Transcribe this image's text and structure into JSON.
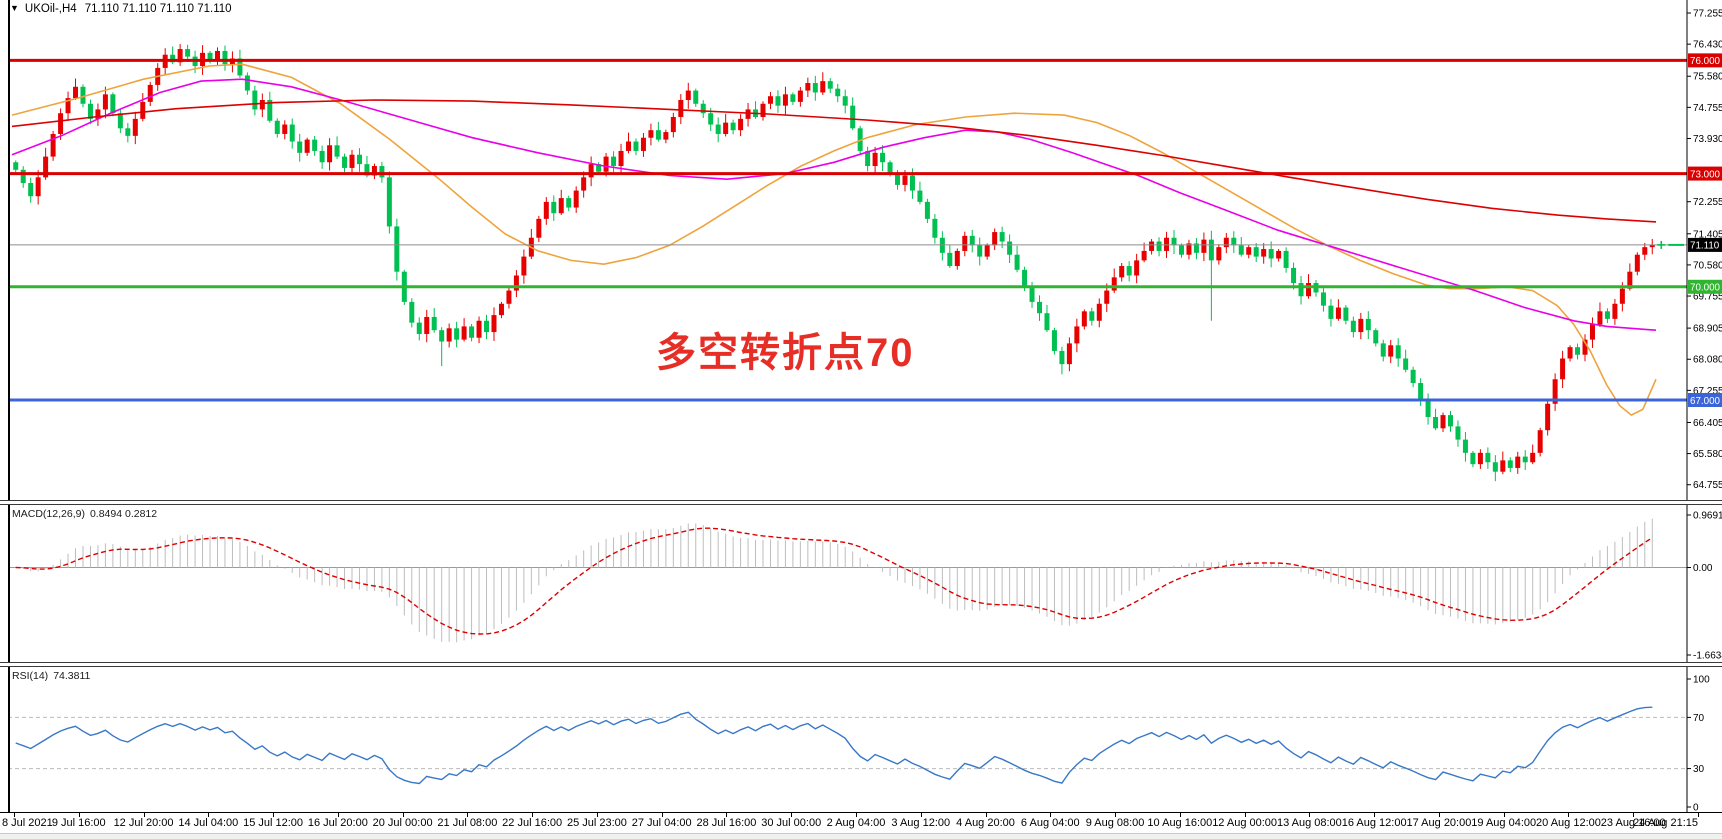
{
  "window": {
    "title_symbol": "UKOil-,H4",
    "title_values": "71.110 71.110 71.110 71.110"
  },
  "chart_data": {
    "type": "candlestick",
    "symbol": "UKOil-",
    "timeframe": "H4",
    "title": "UKOil-,H4 71.110 71.110 71.110 71.110",
    "x_labels": [
      "8 Jul 2021",
      "9 Jul 16:00",
      "12 Jul 20:00",
      "14 Jul 04:00",
      "15 Jul 12:00",
      "16 Jul 20:00",
      "20 Jul 00:00",
      "21 Jul 08:00",
      "22 Jul 16:00",
      "25 Jul 23:00",
      "27 Jul 04:00",
      "28 Jul 16:00",
      "30 Jul 00:00",
      "2 Aug 04:00",
      "3 Aug 12:00",
      "4 Aug 20:00",
      "6 Aug 04:00",
      "9 Aug 08:00",
      "10 Aug 16:00",
      "12 Aug 00:00",
      "13 Aug 08:00",
      "16 Aug 12:00",
      "17 Aug 20:00",
      "19 Aug 04:00",
      "20 Aug 12:00",
      "23 Aug 16:00",
      "24 Aug 21:15"
    ],
    "y_axis": {
      "max": 77.6,
      "min": 64.35,
      "ticks": [
        77.255,
        76.43,
        75.58,
        74.755,
        73.93,
        72.255,
        71.405,
        70.58,
        69.755,
        68.905,
        68.08,
        67.255,
        66.405,
        65.58,
        64.755
      ]
    },
    "first_open": 73.3,
    "closes": [
      73.1,
      72.75,
      72.4,
      72.9,
      73.45,
      74.05,
      74.6,
      75.0,
      75.3,
      74.85,
      74.45,
      74.7,
      75.1,
      74.6,
      74.2,
      74.0,
      74.45,
      74.9,
      75.35,
      75.8,
      76.15,
      75.95,
      76.3,
      76.1,
      75.85,
      76.2,
      76.0,
      76.25,
      75.9,
      76.05,
      75.6,
      75.2,
      74.7,
      74.95,
      74.4,
      74.05,
      74.3,
      73.85,
      73.55,
      73.9,
      73.6,
      73.3,
      73.75,
      73.45,
      73.15,
      73.5,
      73.25,
      72.95,
      73.2,
      72.9,
      71.6,
      70.4,
      69.6,
      69.05,
      68.75,
      69.2,
      68.85,
      68.55,
      68.9,
      68.6,
      68.95,
      68.65,
      69.1,
      68.8,
      69.25,
      69.55,
      69.9,
      70.3,
      70.8,
      71.3,
      71.8,
      72.25,
      71.95,
      72.35,
      72.1,
      72.55,
      72.9,
      73.25,
      73.05,
      73.45,
      73.2,
      73.6,
      73.85,
      73.6,
      73.95,
      74.15,
      73.9,
      74.1,
      74.5,
      74.95,
      75.2,
      74.85,
      74.6,
      74.3,
      74.05,
      74.35,
      74.15,
      74.45,
      74.7,
      74.5,
      74.85,
      75.05,
      74.8,
      75.1,
      74.9,
      75.2,
      75.4,
      75.15,
      75.45,
      75.25,
      75.05,
      74.8,
      74.2,
      73.6,
      73.2,
      73.55,
      73.3,
      73.0,
      72.7,
      72.95,
      72.55,
      72.25,
      71.8,
      71.3,
      70.9,
      70.55,
      70.95,
      71.35,
      71.1,
      70.8,
      71.1,
      71.45,
      71.2,
      70.85,
      70.45,
      70.0,
      69.6,
      69.3,
      68.85,
      68.3,
      67.95,
      68.5,
      68.95,
      69.35,
      69.1,
      69.55,
      69.9,
      70.25,
      70.55,
      70.3,
      70.7,
      70.95,
      71.2,
      70.95,
      71.3,
      71.1,
      70.85,
      71.15,
      70.9,
      71.25,
      70.7,
      71.05,
      71.3,
      71.1,
      70.85,
      71.05,
      70.8,
      71.0,
      70.75,
      70.95,
      70.5,
      70.1,
      69.75,
      70.1,
      69.85,
      69.5,
      69.15,
      69.45,
      69.1,
      68.8,
      69.15,
      68.85,
      68.5,
      68.15,
      68.45,
      68.1,
      67.8,
      67.45,
      67.0,
      66.55,
      66.25,
      66.6,
      66.3,
      65.95,
      65.6,
      65.3,
      65.6,
      65.35,
      65.1,
      65.4,
      65.2,
      65.5,
      65.35,
      65.6,
      66.2,
      66.9,
      67.55,
      68.1,
      68.4,
      68.2,
      68.6,
      69.0,
      69.35,
      69.15,
      69.55,
      69.95,
      70.4,
      70.85,
      71.05,
      71.11
    ],
    "wick_overrides": [
      {
        "i": 22,
        "high": 76.43
      },
      {
        "i": 57,
        "low": 67.9
      },
      {
        "i": 140,
        "low": 67.68
      },
      {
        "i": 160,
        "low": 69.1
      },
      {
        "i": 198,
        "low": 64.85
      }
    ],
    "colors": {
      "bull_candle": "#E60000",
      "bear_candle": "#00C052",
      "axis_line": "#000000",
      "tick_text": "#000000"
    },
    "moving_averages": [
      {
        "name": "fast-ma",
        "color": "#EFA33C",
        "points": [
          [
            0,
            74.55
          ],
          [
            0.04,
            75.0
          ],
          [
            0.08,
            75.5
          ],
          [
            0.12,
            75.85
          ],
          [
            0.14,
            75.9
          ],
          [
            0.17,
            75.55
          ],
          [
            0.2,
            74.85
          ],
          [
            0.23,
            73.9
          ],
          [
            0.26,
            72.85
          ],
          [
            0.28,
            72.1
          ],
          [
            0.3,
            71.4
          ],
          [
            0.32,
            70.95
          ],
          [
            0.34,
            70.7
          ],
          [
            0.36,
            70.6
          ],
          [
            0.38,
            70.78
          ],
          [
            0.4,
            71.1
          ],
          [
            0.42,
            71.6
          ],
          [
            0.44,
            72.15
          ],
          [
            0.46,
            72.7
          ],
          [
            0.48,
            73.2
          ],
          [
            0.5,
            73.6
          ],
          [
            0.52,
            73.95
          ],
          [
            0.55,
            74.3
          ],
          [
            0.58,
            74.5
          ],
          [
            0.61,
            74.6
          ],
          [
            0.64,
            74.55
          ],
          [
            0.66,
            74.35
          ],
          [
            0.68,
            74.0
          ],
          [
            0.7,
            73.55
          ],
          [
            0.72,
            73.05
          ],
          [
            0.74,
            72.55
          ],
          [
            0.76,
            72.05
          ],
          [
            0.78,
            71.55
          ],
          [
            0.8,
            71.1
          ],
          [
            0.82,
            70.7
          ],
          [
            0.84,
            70.35
          ],
          [
            0.86,
            70.05
          ],
          [
            0.875,
            69.95
          ],
          [
            0.89,
            69.95
          ],
          [
            0.91,
            70.0
          ],
          [
            0.925,
            69.9
          ],
          [
            0.94,
            69.5
          ],
          [
            0.95,
            69.0
          ],
          [
            0.96,
            68.3
          ],
          [
            0.97,
            67.4
          ],
          [
            0.978,
            66.85
          ],
          [
            0.985,
            66.6
          ],
          [
            0.992,
            66.75
          ],
          [
            1,
            67.55
          ]
        ]
      },
      {
        "name": "medium-ma",
        "color": "#E800E8",
        "points": [
          [
            0,
            73.5
          ],
          [
            0.03,
            74.0
          ],
          [
            0.06,
            74.6
          ],
          [
            0.09,
            75.15
          ],
          [
            0.115,
            75.45
          ],
          [
            0.14,
            75.5
          ],
          [
            0.17,
            75.3
          ],
          [
            0.2,
            74.95
          ],
          [
            0.24,
            74.45
          ],
          [
            0.28,
            73.95
          ],
          [
            0.32,
            73.55
          ],
          [
            0.36,
            73.2
          ],
          [
            0.4,
            72.95
          ],
          [
            0.435,
            72.85
          ],
          [
            0.47,
            73.0
          ],
          [
            0.5,
            73.3
          ],
          [
            0.53,
            73.7
          ],
          [
            0.555,
            73.95
          ],
          [
            0.58,
            74.15
          ],
          [
            0.6,
            74.1
          ],
          [
            0.62,
            73.9
          ],
          [
            0.645,
            73.55
          ],
          [
            0.665,
            73.25
          ],
          [
            0.685,
            72.95
          ],
          [
            0.71,
            72.5
          ],
          [
            0.74,
            72.0
          ],
          [
            0.77,
            71.5
          ],
          [
            0.8,
            71.1
          ],
          [
            0.83,
            70.7
          ],
          [
            0.86,
            70.3
          ],
          [
            0.89,
            69.9
          ],
          [
            0.92,
            69.45
          ],
          [
            0.95,
            69.1
          ],
          [
            0.97,
            68.95
          ],
          [
            1,
            68.85
          ]
        ]
      },
      {
        "name": "slow-ma",
        "color": "#DD0000",
        "points": [
          [
            0,
            74.25
          ],
          [
            0.05,
            74.5
          ],
          [
            0.1,
            74.72
          ],
          [
            0.16,
            74.88
          ],
          [
            0.22,
            74.95
          ],
          [
            0.28,
            74.92
          ],
          [
            0.34,
            74.82
          ],
          [
            0.4,
            74.7
          ],
          [
            0.46,
            74.58
          ],
          [
            0.52,
            74.42
          ],
          [
            0.57,
            74.25
          ],
          [
            0.62,
            74.0
          ],
          [
            0.66,
            73.75
          ],
          [
            0.7,
            73.48
          ],
          [
            0.74,
            73.18
          ],
          [
            0.78,
            72.88
          ],
          [
            0.82,
            72.6
          ],
          [
            0.86,
            72.32
          ],
          [
            0.9,
            72.08
          ],
          [
            0.94,
            71.9
          ],
          [
            0.97,
            71.8
          ],
          [
            1,
            71.72
          ]
        ]
      }
    ],
    "horizontal_lines": [
      {
        "price": 76.0,
        "label": "76.000",
        "color": "#D90000",
        "width": 3
      },
      {
        "price": 73.0,
        "label": "73.000",
        "color": "#D90000",
        "width": 3
      },
      {
        "price": 70.0,
        "label": "70.000",
        "color": "#2FB52F",
        "width": 3
      },
      {
        "price": 67.0,
        "label": "67.000",
        "color": "#3C64D9",
        "width": 3
      }
    ],
    "current_price": {
      "price": 71.11,
      "label": "71.110",
      "line_color": "#8C8C8C",
      "badge_bg": "#000000",
      "badge_fg": "#FFFFFF",
      "marker_color": "#00C052"
    },
    "indicators": {
      "macd": {
        "label": "MACD(12,26,9)",
        "values": "0.8494 0.2812",
        "params": [
          12,
          26,
          9
        ],
        "axis_labels": {
          "top": "0.9691",
          "zero": "0.00",
          "bottom": "-1.6634"
        },
        "plot_range": [
          -1.8,
          1.15
        ],
        "histogram_color": "#BDBDBD",
        "signal_color": "#DD0000",
        "zero_line_color": "#9A9A9A"
      },
      "rsi": {
        "label": "RSI(14)",
        "value": "74.3811",
        "period": 14,
        "levels": [
          70,
          30
        ],
        "axis_ticks": [
          100,
          70,
          30,
          0
        ],
        "line_color": "#3878C8",
        "level_color": "#BBBBBB"
      }
    },
    "annotation": {
      "text": "多空转折点70",
      "color": "#E62E26"
    }
  }
}
